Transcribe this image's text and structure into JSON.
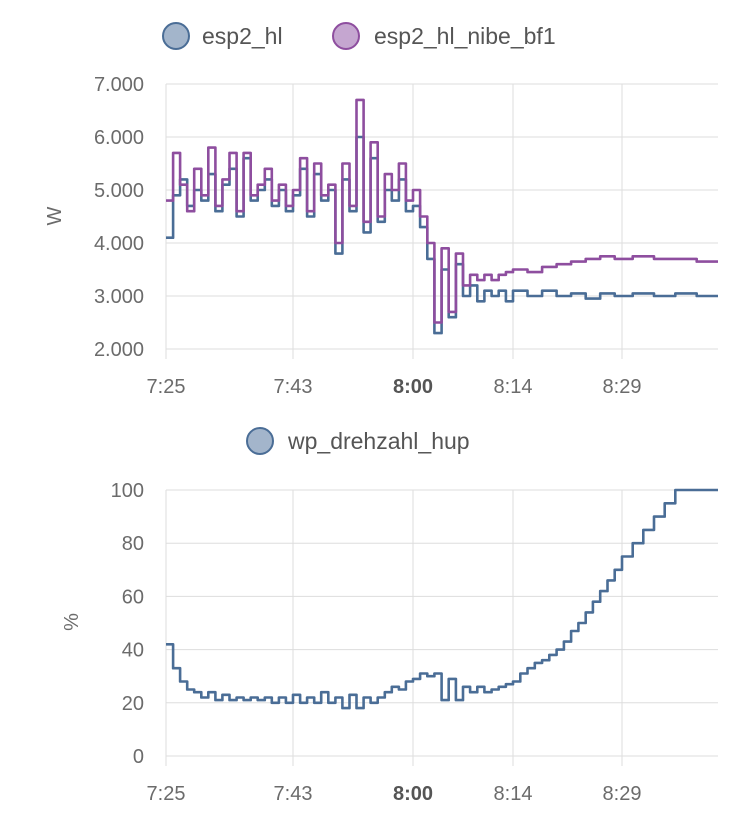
{
  "charts": [
    {
      "id": "power",
      "ylabel": "W",
      "yticks": [
        2000,
        3000,
        4000,
        5000,
        6000,
        7000
      ],
      "ytick_labels": [
        "2.000",
        "3.000",
        "4.000",
        "5.000",
        "6.000",
        "7.000"
      ],
      "ylim": [
        2000,
        7000
      ],
      "xticks": [
        "7:25",
        "7:43",
        "8:00",
        "8:14",
        "8:29"
      ],
      "xtick_bold": "8:00",
      "legend": [
        {
          "name": "esp2_hl",
          "color": "#4a6d96",
          "fill": "#a3b5cb"
        },
        {
          "name": "esp2_hl_nibe_bf1",
          "color": "#8e4e9f",
          "fill": "#c5a6d0"
        }
      ]
    },
    {
      "id": "speed",
      "ylabel": "%",
      "yticks": [
        0,
        20,
        40,
        60,
        80,
        100
      ],
      "ytick_labels": [
        "0",
        "20",
        "40",
        "60",
        "80",
        "100"
      ],
      "ylim": [
        0,
        100
      ],
      "xticks": [
        "7:25",
        "7:43",
        "8:00",
        "8:14",
        "8:29"
      ],
      "xtick_bold": "8:00",
      "legend": [
        {
          "name": "wp_drehzahl_hup",
          "color": "#4a6d96",
          "fill": "#a3b5cb"
        }
      ]
    }
  ],
  "chart_data": [
    {
      "type": "line",
      "ylabel": "W",
      "ylim": [
        2000,
        7000
      ],
      "x_axis": "time",
      "x_ticks": [
        "7:25",
        "7:43",
        "8:00",
        "8:14",
        "8:29"
      ],
      "legend_position": "top",
      "series": [
        {
          "name": "esp2_hl",
          "points": [
            [
              "7:25",
              4100
            ],
            [
              "7:26",
              4900
            ],
            [
              "7:27",
              5200
            ],
            [
              "7:28",
              4700
            ],
            [
              "7:29",
              5000
            ],
            [
              "7:30",
              4800
            ],
            [
              "7:31",
              5300
            ],
            [
              "7:32",
              4600
            ],
            [
              "7:33",
              5100
            ],
            [
              "7:34",
              5400
            ],
            [
              "7:35",
              4500
            ],
            [
              "7:36",
              5600
            ],
            [
              "7:37",
              4800
            ],
            [
              "7:38",
              5000
            ],
            [
              "7:39",
              5200
            ],
            [
              "7:40",
              4700
            ],
            [
              "7:41",
              5000
            ],
            [
              "7:42",
              4600
            ],
            [
              "7:43",
              4900
            ],
            [
              "7:44",
              5400
            ],
            [
              "7:45",
              4500
            ],
            [
              "7:46",
              5300
            ],
            [
              "7:47",
              4800
            ],
            [
              "7:48",
              5000
            ],
            [
              "7:49",
              3800
            ],
            [
              "7:50",
              5200
            ],
            [
              "7:51",
              4600
            ],
            [
              "7:52",
              6000
            ],
            [
              "7:53",
              4200
            ],
            [
              "7:54",
              5600
            ],
            [
              "7:55",
              4400
            ],
            [
              "7:56",
              5000
            ],
            [
              "7:57",
              4800
            ],
            [
              "7:58",
              5200
            ],
            [
              "7:59",
              4600
            ],
            [
              "8:00",
              4700
            ],
            [
              "8:01",
              4300
            ],
            [
              "8:02",
              3700
            ],
            [
              "8:03",
              2300
            ],
            [
              "8:04",
              3500
            ],
            [
              "8:05",
              2600
            ],
            [
              "8:06",
              3600
            ],
            [
              "8:07",
              3000
            ],
            [
              "8:08",
              3200
            ],
            [
              "8:09",
              2900
            ],
            [
              "8:10",
              3100
            ],
            [
              "8:11",
              3000
            ],
            [
              "8:12",
              3100
            ],
            [
              "8:13",
              2900
            ],
            [
              "8:14",
              3100
            ],
            [
              "8:16",
              3000
            ],
            [
              "8:18",
              3100
            ],
            [
              "8:20",
              3000
            ],
            [
              "8:22",
              3050
            ],
            [
              "8:24",
              2950
            ],
            [
              "8:26",
              3050
            ],
            [
              "8:28",
              3000
            ],
            [
              "8:30",
              3050
            ],
            [
              "8:32",
              3000
            ],
            [
              "8:34",
              3050
            ],
            [
              "8:36",
              3000
            ],
            [
              "8:38",
              3000
            ]
          ]
        },
        {
          "name": "esp2_hl_nibe_bf1",
          "points": [
            [
              "7:25",
              4800
            ],
            [
              "7:26",
              5700
            ],
            [
              "7:27",
              5100
            ],
            [
              "7:28",
              4600
            ],
            [
              "7:29",
              5400
            ],
            [
              "7:30",
              4900
            ],
            [
              "7:31",
              5800
            ],
            [
              "7:32",
              4700
            ],
            [
              "7:33",
              5200
            ],
            [
              "7:34",
              5700
            ],
            [
              "7:35",
              4600
            ],
            [
              "7:36",
              5700
            ],
            [
              "7:37",
              4900
            ],
            [
              "7:38",
              5100
            ],
            [
              "7:39",
              5400
            ],
            [
              "7:40",
              4800
            ],
            [
              "7:41",
              5100
            ],
            [
              "7:42",
              4700
            ],
            [
              "7:43",
              5000
            ],
            [
              "7:44",
              5600
            ],
            [
              "7:45",
              4600
            ],
            [
              "7:46",
              5500
            ],
            [
              "7:47",
              4900
            ],
            [
              "7:48",
              5100
            ],
            [
              "7:49",
              4000
            ],
            [
              "7:50",
              5500
            ],
            [
              "7:51",
              4700
            ],
            [
              "7:52",
              6700
            ],
            [
              "7:53",
              4400
            ],
            [
              "7:54",
              5900
            ],
            [
              "7:55",
              4500
            ],
            [
              "7:56",
              5300
            ],
            [
              "7:57",
              5000
            ],
            [
              "7:58",
              5500
            ],
            [
              "7:59",
              4800
            ],
            [
              "8:00",
              5000
            ],
            [
              "8:01",
              4500
            ],
            [
              "8:02",
              4000
            ],
            [
              "8:03",
              2500
            ],
            [
              "8:04",
              3900
            ],
            [
              "8:05",
              2700
            ],
            [
              "8:06",
              3800
            ],
            [
              "8:07",
              3200
            ],
            [
              "8:08",
              3400
            ],
            [
              "8:09",
              3300
            ],
            [
              "8:10",
              3400
            ],
            [
              "8:11",
              3300
            ],
            [
              "8:12",
              3400
            ],
            [
              "8:13",
              3450
            ],
            [
              "8:14",
              3500
            ],
            [
              "8:16",
              3450
            ],
            [
              "8:18",
              3550
            ],
            [
              "8:20",
              3600
            ],
            [
              "8:22",
              3650
            ],
            [
              "8:24",
              3700
            ],
            [
              "8:26",
              3750
            ],
            [
              "8:28",
              3700
            ],
            [
              "8:30",
              3750
            ],
            [
              "8:32",
              3700
            ],
            [
              "8:34",
              3700
            ],
            [
              "8:36",
              3650
            ],
            [
              "8:38",
              3650
            ]
          ]
        }
      ]
    },
    {
      "type": "line",
      "ylabel": "%",
      "ylim": [
        0,
        100
      ],
      "x_axis": "time",
      "x_ticks": [
        "7:25",
        "7:43",
        "8:00",
        "8:14",
        "8:29"
      ],
      "legend_position": "top",
      "series": [
        {
          "name": "wp_drehzahl_hup",
          "points": [
            [
              "7:25",
              42
            ],
            [
              "7:26",
              33
            ],
            [
              "7:27",
              28
            ],
            [
              "7:28",
              25
            ],
            [
              "7:29",
              24
            ],
            [
              "7:30",
              22
            ],
            [
              "7:31",
              24
            ],
            [
              "7:32",
              21
            ],
            [
              "7:33",
              23
            ],
            [
              "7:34",
              21
            ],
            [
              "7:35",
              22
            ],
            [
              "7:36",
              21
            ],
            [
              "7:37",
              22
            ],
            [
              "7:38",
              21
            ],
            [
              "7:39",
              22
            ],
            [
              "7:40",
              20
            ],
            [
              "7:41",
              22
            ],
            [
              "7:42",
              20
            ],
            [
              "7:43",
              23
            ],
            [
              "7:44",
              20
            ],
            [
              "7:45",
              22
            ],
            [
              "7:46",
              20
            ],
            [
              "7:47",
              24
            ],
            [
              "7:48",
              20
            ],
            [
              "7:49",
              22
            ],
            [
              "7:50",
              18
            ],
            [
              "7:51",
              23
            ],
            [
              "7:52",
              18
            ],
            [
              "7:53",
              22
            ],
            [
              "7:54",
              20
            ],
            [
              "7:55",
              22
            ],
            [
              "7:56",
              24
            ],
            [
              "7:57",
              26
            ],
            [
              "7:58",
              25
            ],
            [
              "7:59",
              28
            ],
            [
              "8:00",
              29
            ],
            [
              "8:01",
              31
            ],
            [
              "8:02",
              30
            ],
            [
              "8:03",
              31
            ],
            [
              "8:04",
              21
            ],
            [
              "8:05",
              29
            ],
            [
              "8:06",
              21
            ],
            [
              "8:07",
              26
            ],
            [
              "8:08",
              24
            ],
            [
              "8:09",
              26
            ],
            [
              "8:10",
              24
            ],
            [
              "8:11",
              25
            ],
            [
              "8:12",
              26
            ],
            [
              "8:13",
              27
            ],
            [
              "8:14",
              28
            ],
            [
              "8:15",
              31
            ],
            [
              "8:16",
              33
            ],
            [
              "8:17",
              35
            ],
            [
              "8:18",
              36
            ],
            [
              "8:19",
              38
            ],
            [
              "8:20",
              40
            ],
            [
              "8:21",
              43
            ],
            [
              "8:22",
              47
            ],
            [
              "8:23",
              50
            ],
            [
              "8:24",
              54
            ],
            [
              "8:25",
              58
            ],
            [
              "8:26",
              62
            ],
            [
              "8:27",
              66
            ],
            [
              "8:28",
              70
            ],
            [
              "8:29",
              75
            ],
            [
              "8:30",
              80
            ],
            [
              "8:31",
              85
            ],
            [
              "8:32",
              90
            ],
            [
              "8:33",
              95
            ],
            [
              "8:34",
              100
            ],
            [
              "8:38",
              100
            ]
          ]
        }
      ]
    }
  ]
}
